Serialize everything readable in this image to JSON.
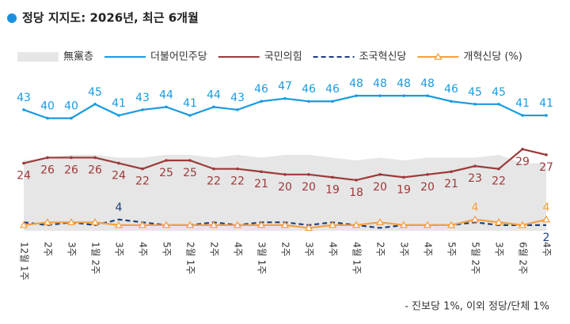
{
  "chart_data": {
    "type": "line",
    "title": "정당 지지도: 2026년, 최근 6개월",
    "note": "- 진보당 1%, 이외 정당/단체 1%",
    "categories": [
      "12월 1주",
      "2주",
      "3주",
      "1월 2주",
      "3주",
      "4주",
      "5주",
      "2월 1주",
      "2주",
      "4주",
      "3월 1주",
      "2주",
      "3주",
      "4주",
      "4월 1주",
      "2주",
      "3주",
      "4주",
      "5주",
      "5월 2주",
      "3주",
      "6월 2주",
      "4주"
    ],
    "ylim": [
      0,
      50
    ],
    "legend": "top",
    "series": [
      {
        "name": "無黨층",
        "color": "#e6e6e6",
        "style": "area",
        "values": [
          25,
          26,
          27,
          27,
          26,
          26,
          27,
          27,
          26,
          27,
          26,
          27,
          27,
          26,
          25,
          26,
          25,
          26,
          26,
          26,
          27,
          24,
          24
        ]
      },
      {
        "name": "더불어민주당",
        "color": "#1a9be0",
        "style": "solid",
        "label_side": "above",
        "values": [
          43,
          40,
          40,
          45,
          41,
          43,
          44,
          41,
          44,
          43,
          46,
          47,
          46,
          46,
          48,
          48,
          48,
          48,
          46,
          45,
          45,
          41,
          41
        ]
      },
      {
        "name": "국민의힘",
        "color": "#9b3a3a",
        "style": "solid",
        "label_side": "below",
        "values": [
          24,
          26,
          26,
          26,
          24,
          22,
          25,
          25,
          22,
          22,
          21,
          20,
          20,
          19,
          18,
          20,
          19,
          20,
          21,
          23,
          22,
          29,
          27
        ]
      },
      {
        "name": "조국혁신당",
        "color": "#1f3f7a",
        "style": "dashed",
        "label_side": "above",
        "values": [
          3,
          2,
          3,
          2,
          4,
          3,
          2,
          2,
          3,
          2,
          3,
          3,
          2,
          3,
          2,
          1,
          2,
          2,
          2,
          3,
          2,
          2,
          2
        ],
        "value_labels": [
          null,
          null,
          null,
          null,
          "4",
          null,
          null,
          null,
          null,
          null,
          null,
          null,
          null,
          null,
          null,
          null,
          null,
          null,
          null,
          null,
          null,
          null,
          "2"
        ]
      },
      {
        "name": "개혁신당 (%)",
        "color": "#f5a040",
        "style": "triangle",
        "label_side": "above",
        "values": [
          2,
          3,
          3,
          3,
          2,
          2,
          2,
          2,
          2,
          2,
          2,
          2,
          1,
          2,
          2,
          3,
          2,
          2,
          2,
          4,
          3,
          2,
          4
        ],
        "value_labels": [
          null,
          null,
          null,
          null,
          null,
          null,
          null,
          null,
          null,
          null,
          null,
          null,
          null,
          null,
          null,
          null,
          null,
          null,
          null,
          "4",
          null,
          null,
          "4"
        ]
      }
    ]
  }
}
